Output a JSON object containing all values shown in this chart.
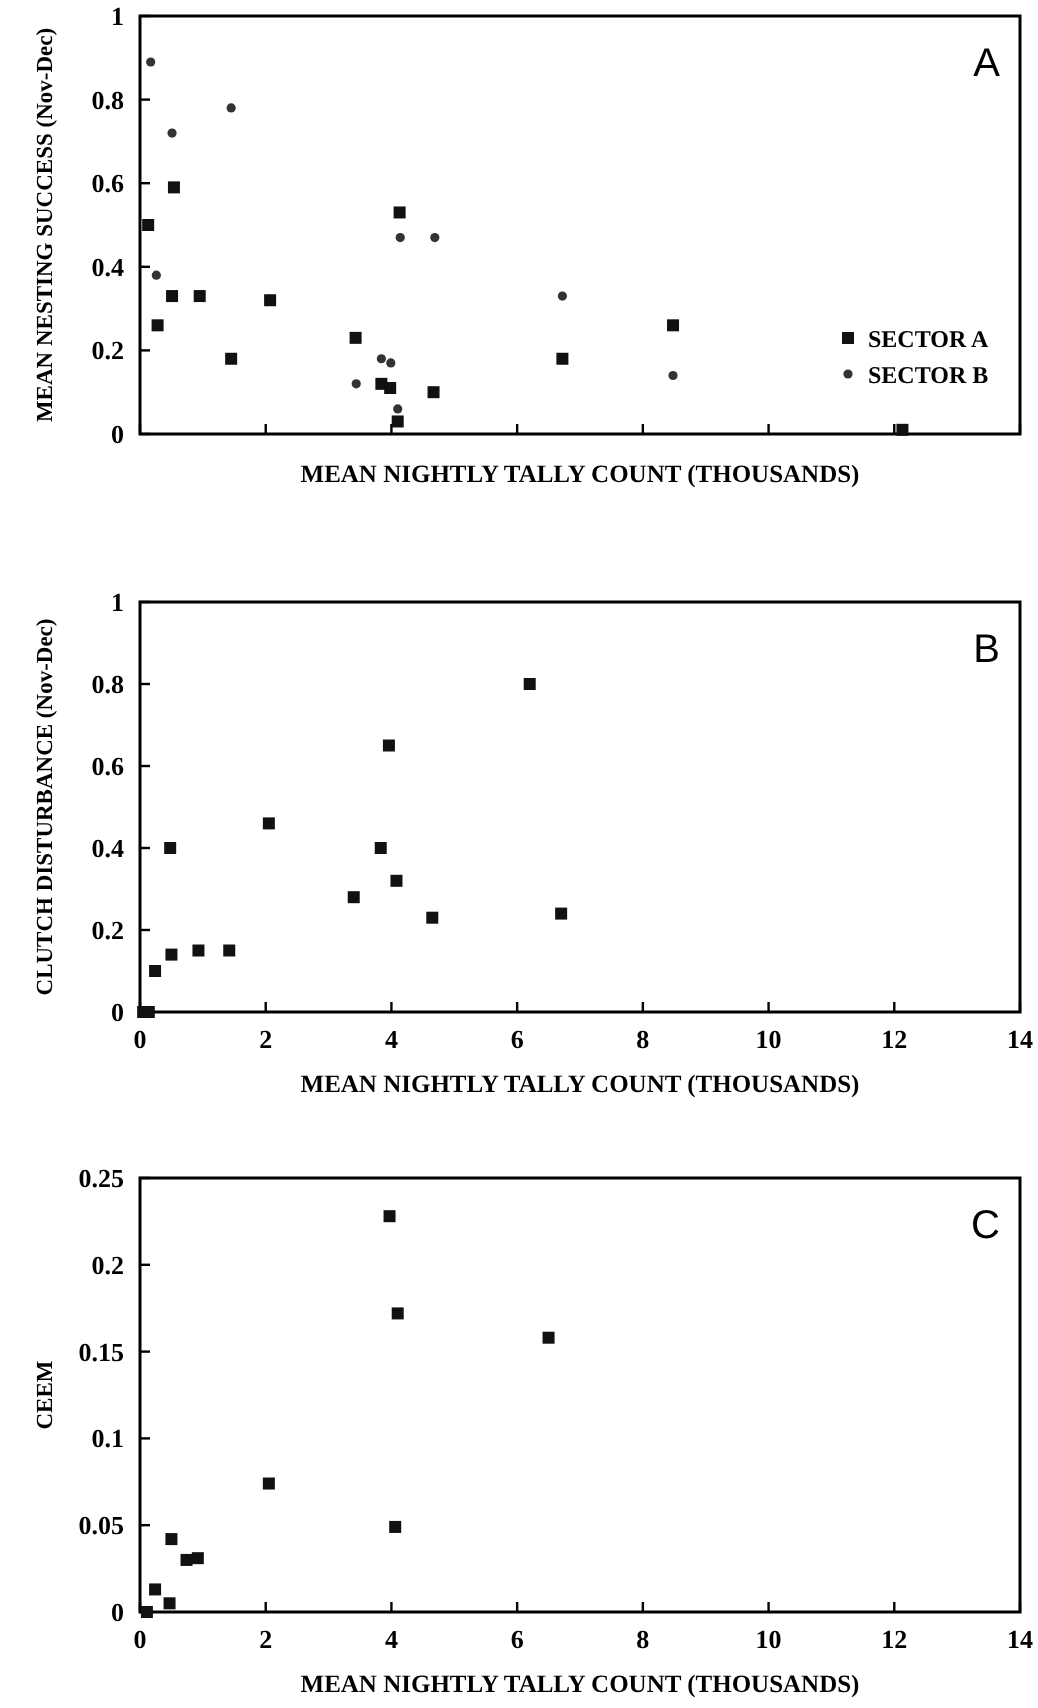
{
  "chart_data": [
    {
      "type": "scatter",
      "xlabel": "MEAN NIGHTLY TALLY COUNT (THOUSANDS)",
      "ylabel": "MEAN NESTING SUCCESS (Nov-Dec)",
      "annotations": [
        "A"
      ],
      "xlim": [
        0,
        14
      ],
      "xticks": [
        0,
        2,
        4,
        6,
        8,
        10,
        12,
        14
      ],
      "ylim": [
        0,
        1
      ],
      "yticks": [
        0,
        0.2,
        0.4,
        0.6,
        0.8,
        1
      ],
      "tick_labels": "y",
      "grid": false,
      "legend": "bottom right",
      "series": [
        {
          "name": "SECTOR A",
          "color": "#111111",
          "marker": "square",
          "x": [
            0.13,
            0.28,
            0.51,
            0.54,
            0.95,
            1.45,
            2.07,
            3.43,
            3.84,
            3.98,
            4.1,
            4.13,
            4.67,
            6.72,
            8.48,
            12.13
          ],
          "values": [
            0.5,
            0.26,
            0.33,
            0.59,
            0.33,
            0.18,
            0.32,
            0.23,
            0.12,
            0.11,
            0.03,
            0.53,
            0.1,
            0.18,
            0.26,
            0.01
          ]
        },
        {
          "name": "SECTOR B",
          "color": "#333333",
          "marker": "circle",
          "x": [
            0.17,
            0.26,
            0.51,
            1.45,
            3.44,
            3.84,
            3.99,
            4.14,
            4.1,
            4.69,
            6.72,
            8.48
          ],
          "values": [
            0.89,
            0.38,
            0.72,
            0.78,
            0.12,
            0.18,
            0.17,
            0.47,
            0.06,
            0.47,
            0.33,
            0.14
          ]
        }
      ]
    },
    {
      "type": "scatter",
      "xlabel": "MEAN NIGHTLY TALLY COUNT (THOUSANDS)",
      "ylabel": "CLUTCH DISTURBANCE (Nov-Dec)",
      "annotations": [
        "B"
      ],
      "xlim": [
        0,
        14
      ],
      "xticks": [
        0,
        2,
        4,
        6,
        8,
        10,
        12,
        14
      ],
      "ylim": [
        0,
        1
      ],
      "yticks": [
        0,
        0.2,
        0.4,
        0.6,
        0.8,
        1
      ],
      "grid": false,
      "series": [
        {
          "color": "#111111",
          "marker": "square",
          "x": [
            0.05,
            0.14,
            0.24,
            0.48,
            0.5,
            0.93,
            1.42,
            2.05,
            3.4,
            3.83,
            3.96,
            4.08,
            4.65,
            6.2,
            6.7
          ],
          "values": [
            0,
            0,
            0.1,
            0.4,
            0.14,
            0.15,
            0.15,
            0.46,
            0.28,
            0.4,
            0.65,
            0.32,
            0.23,
            0.8,
            0.24
          ]
        }
      ]
    },
    {
      "type": "scatter",
      "xlabel": "MEAN NIGHTLY TALLY COUNT (THOUSANDS)",
      "ylabel": "CEEM",
      "annotations": [
        "C"
      ],
      "xlim": [
        0,
        14
      ],
      "xticks": [
        0,
        2,
        4,
        6,
        8,
        10,
        12,
        14
      ],
      "ylim": [
        0,
        0.25
      ],
      "yticks": [
        0,
        0.05,
        0.1,
        0.15,
        0.2,
        0.25
      ],
      "grid": false,
      "series": [
        {
          "color": "#111111",
          "marker": "square",
          "x": [
            0.11,
            0.24,
            0.47,
            0.5,
            0.74,
            0.92,
            2.05,
            3.97,
            4.1,
            4.06,
            6.5
          ],
          "values": [
            0,
            0.013,
            0.005,
            0.042,
            0.03,
            0.031,
            0.074,
            0.228,
            0.172,
            0.049,
            0.158
          ]
        }
      ]
    }
  ]
}
